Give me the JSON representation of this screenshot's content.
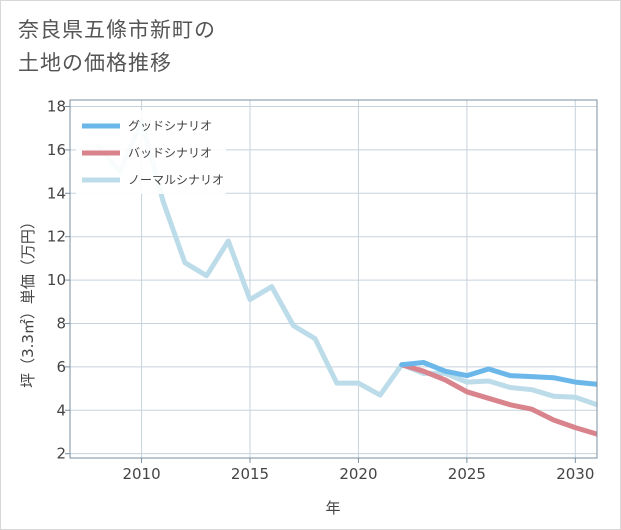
{
  "title": {
    "line1": "奈良県五條市新町の",
    "line2": "土地の価格推移"
  },
  "chart_data": {
    "type": "line",
    "xlabel": "年",
    "ylabel": "坪（3.3㎡）単価（万円）",
    "xlim": [
      2006.7,
      2031
    ],
    "ylim": [
      1.8,
      18.3
    ],
    "x_ticks": [
      2010,
      2015,
      2020,
      2025,
      2030
    ],
    "y_ticks": [
      2,
      4,
      6,
      8,
      10,
      12,
      14,
      16,
      18
    ],
    "grid": true,
    "legend_position": "top-left",
    "series": [
      {
        "name": "グッドシナリオ",
        "color": "#6bb7ea",
        "x": [
          2022,
          2023,
          2024,
          2025,
          2026,
          2027,
          2028,
          2029,
          2030,
          2031
        ],
        "y": [
          6.1,
          6.2,
          5.8,
          5.6,
          5.9,
          5.6,
          5.55,
          5.5,
          5.3,
          5.2
        ]
      },
      {
        "name": "バッドシナリオ",
        "color": "#d9838c",
        "x": [
          2022,
          2023,
          2024,
          2025,
          2026,
          2027,
          2028,
          2029,
          2030,
          2031
        ],
        "y": [
          6.1,
          5.8,
          5.4,
          4.85,
          4.55,
          4.25,
          4.05,
          3.55,
          3.2,
          2.9
        ]
      },
      {
        "name": "ノーマルシナリオ",
        "color": "#bcdcea",
        "x": [
          2008,
          2009,
          2010,
          2011,
          2012,
          2013,
          2014,
          2015,
          2016,
          2017,
          2018,
          2019,
          2020,
          2021,
          2022,
          2023,
          2024,
          2025,
          2026,
          2027,
          2028,
          2029,
          2030,
          2031
        ],
        "y": [
          16.2,
          15.0,
          17.3,
          13.6,
          10.8,
          10.2,
          11.8,
          9.1,
          9.7,
          7.9,
          7.3,
          5.25,
          5.25,
          4.7,
          6.1,
          5.7,
          5.7,
          5.3,
          5.35,
          5.05,
          4.95,
          4.65,
          4.6,
          4.25
        ]
      }
    ]
  }
}
